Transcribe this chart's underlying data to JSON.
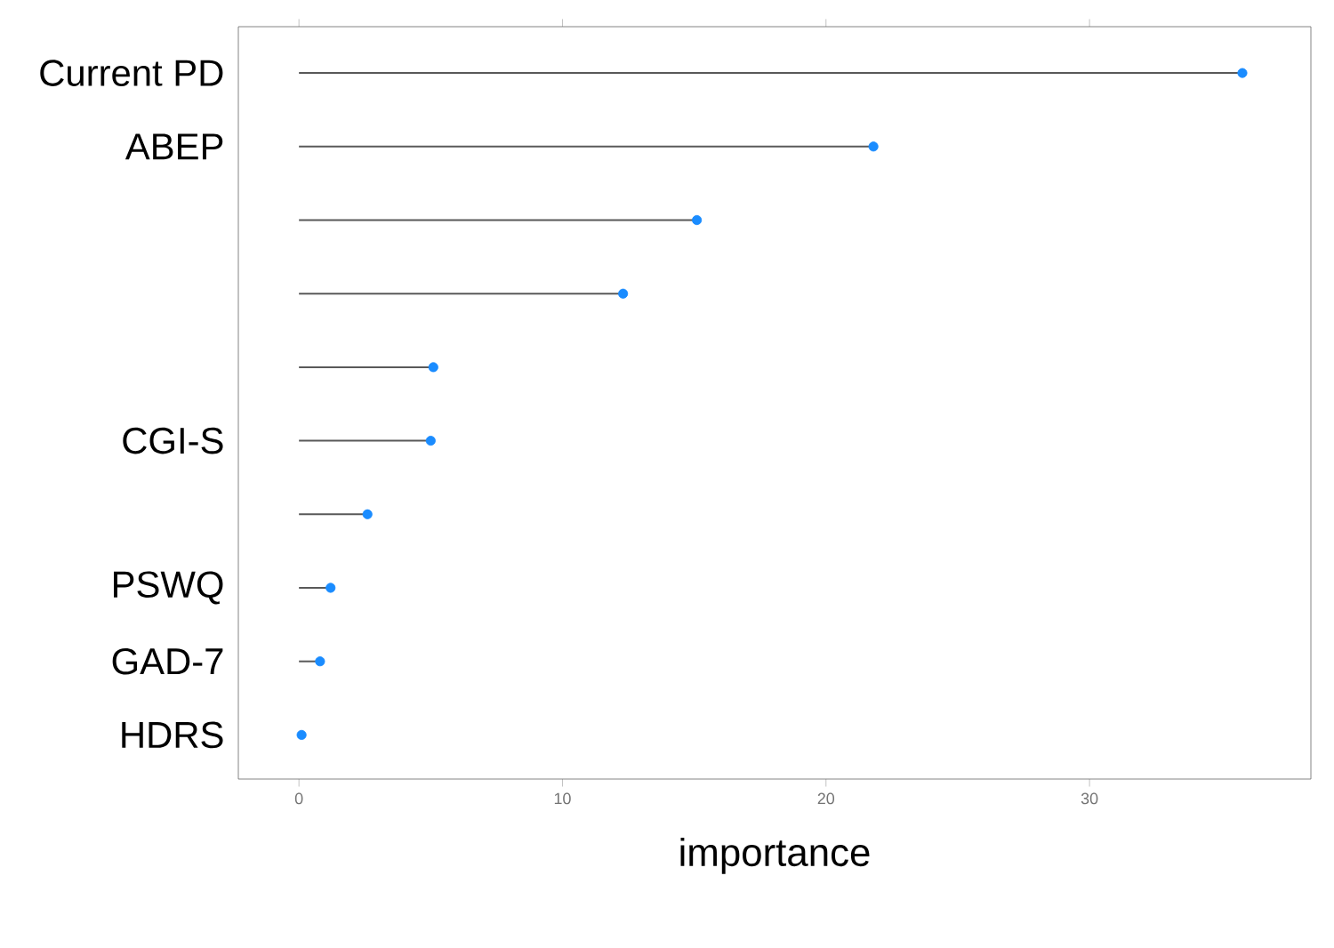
{
  "chart_data": {
    "type": "lollipop",
    "orientation": "horizontal",
    "xlabel": "importance",
    "categories": [
      "Current PD",
      "ABEP",
      null,
      null,
      null,
      "CGI-S",
      null,
      "PSWQ",
      "GAD-7",
      "HDRS"
    ],
    "values": [
      35.8,
      21.8,
      15.1,
      12.3,
      5.1,
      5.0,
      2.6,
      1.2,
      0.8,
      0.1
    ],
    "color": "#1a8cff",
    "xlim": [
      -2.3,
      38.4
    ],
    "xticks": [
      0,
      10,
      20,
      30
    ],
    "marker": "circle"
  }
}
